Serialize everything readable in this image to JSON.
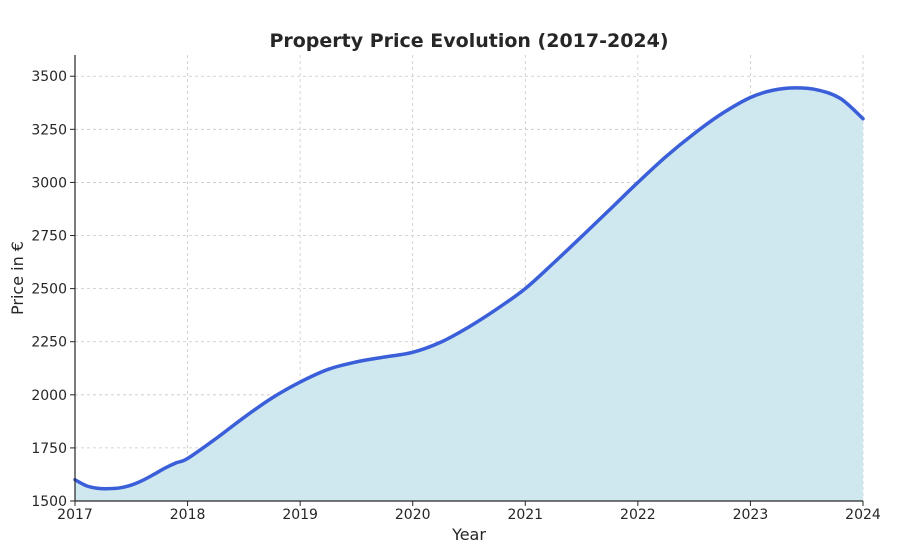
{
  "chart_data": {
    "type": "area",
    "title": "Property Price Evolution (2017-2024)",
    "xlabel": "Year",
    "ylabel": "Price in €",
    "x_ticks": [
      "2017",
      "2018",
      "2019",
      "2020",
      "2021",
      "2022",
      "2023",
      "2024"
    ],
    "y_ticks": [
      1500,
      1750,
      2000,
      2250,
      2500,
      2750,
      3000,
      3250,
      3500
    ],
    "xlim": [
      2017,
      2024
    ],
    "ylim": [
      1500,
      3600
    ],
    "grid": true,
    "colors": {
      "line": "#3a5fd9",
      "fill": "#cfe7ee",
      "grid": "#c8c8c8",
      "axis": "#262626"
    },
    "x": [
      2017,
      2017.1,
      2017.2,
      2017.3,
      2017.4,
      2017.5,
      2017.6,
      2017.7,
      2017.8,
      2017.9,
      2018,
      2018.25,
      2018.5,
      2018.75,
      2019,
      2019.25,
      2019.5,
      2019.75,
      2020,
      2020.25,
      2020.5,
      2020.75,
      2021,
      2021.25,
      2021.5,
      2021.75,
      2022,
      2022.25,
      2022.5,
      2022.75,
      2023,
      2023.2,
      2023.4,
      2023.6,
      2023.8,
      2024
    ],
    "y": [
      1600,
      1572,
      1560,
      1558,
      1562,
      1575,
      1597,
      1625,
      1655,
      1680,
      1700,
      1793,
      1893,
      1985,
      2060,
      2120,
      2155,
      2178,
      2200,
      2248,
      2320,
      2405,
      2500,
      2620,
      2745,
      2872,
      3000,
      3122,
      3230,
      3325,
      3400,
      3434,
      3445,
      3435,
      3395,
      3300
    ]
  }
}
